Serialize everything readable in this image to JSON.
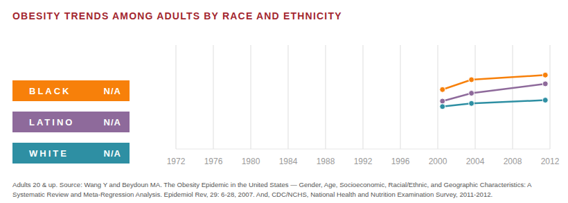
{
  "chart_data": {
    "type": "line",
    "title": "OBESITY TRENDS AMONG ADULTS BY RACE AND ETHNICITY",
    "caption": "Adults 20 & up. Source: Wang Y and Beydoun MA. The Obesity Epidemic in the United States — Gender, Age, Socioeconomic, Racial/Ethnic, and Geographic Characteristics: A Systematic Review and Meta-Regression Analysis. Epidemiol Rev, 29: 6-28, 2007. And, CDC/NCHS, National Health and Nutrition Examination Survey, 2011-2012.",
    "x": [
      2000.5,
      2003.6,
      2011.5
    ],
    "series": [
      {
        "name": "BLACK",
        "annotation": "N/A",
        "color": "#f7800a",
        "values": [
          39,
          45,
          47.8
        ]
      },
      {
        "name": "LATINO",
        "annotation": "N/A",
        "color": "#8e6a9b",
        "values": [
          32,
          36.8,
          42.5
        ]
      },
      {
        "name": "WHITE",
        "annotation": "N/A",
        "color": "#2e8fa3",
        "values": [
          28.7,
          30.6,
          32.6
        ]
      }
    ],
    "xlim": [
      1972,
      2012
    ],
    "xticks": [
      1972,
      1976,
      1980,
      1984,
      1988,
      1992,
      1996,
      2000,
      2004,
      2008,
      2012
    ],
    "ylim": [
      3,
      66
    ],
    "tick_labels": "x",
    "grid": true,
    "marker": "circle",
    "legend": "left"
  }
}
